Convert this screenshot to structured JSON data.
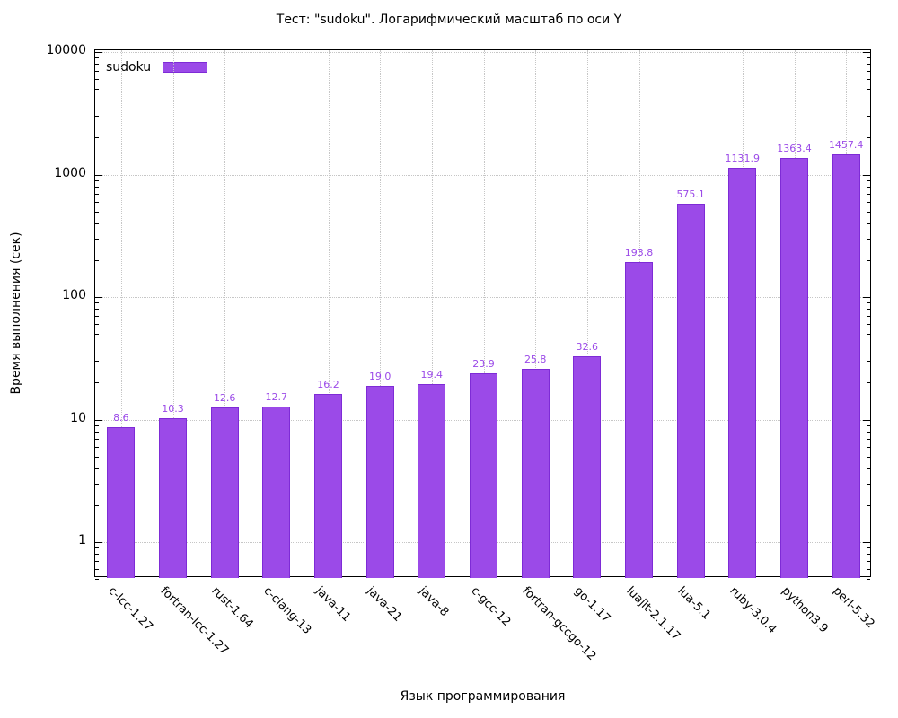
{
  "title": "Тест: \"sudoku\". Логарифмический масштаб по оси Y",
  "legend": {
    "label": "sudoku"
  },
  "axes": {
    "y_label": "Время выполнения (сек)",
    "x_label": "Язык программирования",
    "y_tick_labels": [
      "1",
      "10",
      "100",
      "1000",
      "10000"
    ]
  },
  "colors": {
    "bar_fill": "#9b4ae8",
    "bar_border": "#7e2bd6",
    "value_label": "#9b4ae8",
    "grid": "#c6c6c6",
    "axis": "#000000"
  },
  "chart_data": {
    "type": "bar",
    "title": "Тест: \"sudoku\". Логарифмический масштаб по оси Y",
    "xlabel": "Язык программирования",
    "ylabel": "Время выполнения (сек)",
    "y_scale": "log",
    "ylim": [
      0.5,
      10000
    ],
    "y_ticks": [
      1,
      10,
      100,
      1000,
      10000
    ],
    "grid": true,
    "legend_position": "top-left",
    "categories": [
      "c-lcc-1.27",
      "fortran-lcc-1.27",
      "rust-1.64",
      "c-clang-13",
      "java-11",
      "java-21",
      "java-8",
      "c-gcc-12",
      "fortran-gccgo-12",
      "go-1.17",
      "luajit-2.1.17",
      "lua-5.1",
      "ruby-3.0.4",
      "python3.9",
      "perl-5.32"
    ],
    "series": [
      {
        "name": "sudoku",
        "values": [
          8.6,
          10.3,
          12.6,
          12.7,
          16.2,
          19.0,
          19.4,
          23.9,
          25.8,
          32.6,
          193.8,
          575.1,
          1131.9,
          1363.4,
          1457.4
        ]
      }
    ]
  }
}
